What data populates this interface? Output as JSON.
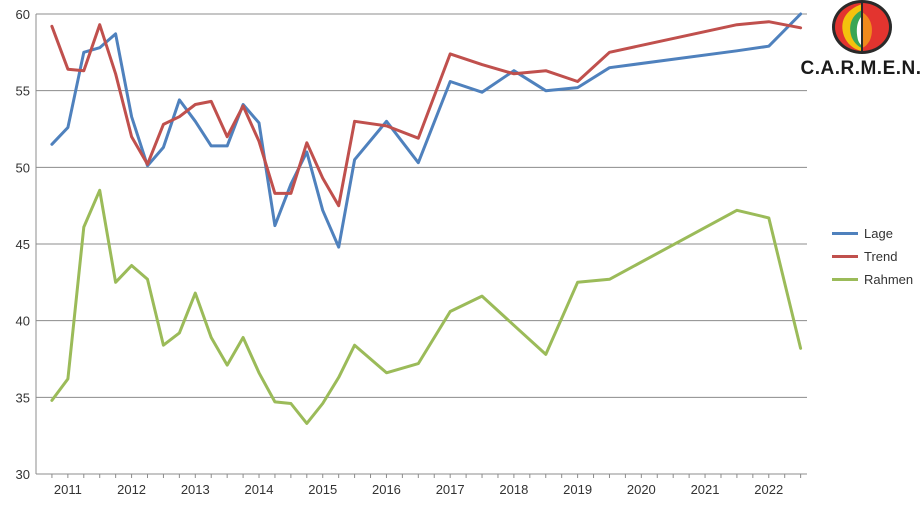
{
  "chart_data": {
    "type": "line",
    "title": "",
    "xlabel": "",
    "ylabel": "",
    "ylim": [
      30,
      60
    ],
    "yticks": [
      30,
      35,
      40,
      45,
      50,
      55,
      60
    ],
    "grid": "horizontal",
    "legend_position": "right",
    "year_labels": [
      "2011",
      "2012",
      "2013",
      "2014",
      "2015",
      "2016",
      "2017",
      "2018",
      "2019",
      "2020",
      "2021",
      "2022"
    ],
    "series": [
      {
        "name": "Lage",
        "color": "#4f81bd",
        "points": [
          [
            2010.75,
            51.5
          ],
          [
            2011.0,
            52.6
          ],
          [
            2011.25,
            57.5
          ],
          [
            2011.5,
            57.8
          ],
          [
            2011.75,
            58.7
          ],
          [
            2012.0,
            53.3
          ],
          [
            2012.25,
            50.1
          ],
          [
            2012.5,
            51.3
          ],
          [
            2012.75,
            54.4
          ],
          [
            2013.0,
            53.0
          ],
          [
            2013.25,
            51.4
          ],
          [
            2013.5,
            51.4
          ],
          [
            2013.75,
            54.1
          ],
          [
            2014.0,
            52.9
          ],
          [
            2014.25,
            46.2
          ],
          [
            2014.5,
            48.9
          ],
          [
            2014.75,
            51.0
          ],
          [
            2015.0,
            47.2
          ],
          [
            2015.25,
            44.8
          ],
          [
            2015.5,
            50.5
          ],
          [
            2016.0,
            53.0
          ],
          [
            2016.5,
            50.3
          ],
          [
            2017.0,
            55.6
          ],
          [
            2017.5,
            54.9
          ],
          [
            2018.0,
            56.3
          ],
          [
            2018.5,
            55.0
          ],
          [
            2019.0,
            55.2
          ],
          [
            2019.5,
            56.5
          ],
          [
            2021.5,
            57.6
          ],
          [
            2022.0,
            57.9
          ],
          [
            2022.5,
            60.0
          ]
        ]
      },
      {
        "name": "Trend",
        "color": "#c0504d",
        "points": [
          [
            2010.75,
            59.2
          ],
          [
            2011.0,
            56.4
          ],
          [
            2011.25,
            56.3
          ],
          [
            2011.5,
            59.3
          ],
          [
            2011.75,
            56.1
          ],
          [
            2012.0,
            52.0
          ],
          [
            2012.25,
            50.2
          ],
          [
            2012.5,
            52.8
          ],
          [
            2012.75,
            53.3
          ],
          [
            2013.0,
            54.1
          ],
          [
            2013.25,
            54.3
          ],
          [
            2013.5,
            52.0
          ],
          [
            2013.75,
            54.0
          ],
          [
            2014.0,
            51.7
          ],
          [
            2014.25,
            48.3
          ],
          [
            2014.5,
            48.3
          ],
          [
            2014.75,
            51.6
          ],
          [
            2015.0,
            49.3
          ],
          [
            2015.25,
            47.5
          ],
          [
            2015.5,
            53.0
          ],
          [
            2016.0,
            52.7
          ],
          [
            2016.5,
            51.9
          ],
          [
            2017.0,
            57.4
          ],
          [
            2017.5,
            56.7
          ],
          [
            2018.0,
            56.1
          ],
          [
            2018.5,
            56.3
          ],
          [
            2019.0,
            55.6
          ],
          [
            2019.5,
            57.5
          ],
          [
            2021.5,
            59.3
          ],
          [
            2022.0,
            59.5
          ],
          [
            2022.5,
            59.1
          ]
        ]
      },
      {
        "name": "Rahmen",
        "color": "#9bbb59",
        "points": [
          [
            2010.75,
            34.8
          ],
          [
            2011.0,
            36.2
          ],
          [
            2011.25,
            46.1
          ],
          [
            2011.5,
            48.5
          ],
          [
            2011.75,
            42.5
          ],
          [
            2012.0,
            43.6
          ],
          [
            2012.25,
            42.7
          ],
          [
            2012.5,
            38.4
          ],
          [
            2012.75,
            39.2
          ],
          [
            2013.0,
            41.8
          ],
          [
            2013.25,
            38.9
          ],
          [
            2013.5,
            37.1
          ],
          [
            2013.75,
            38.9
          ],
          [
            2014.0,
            36.6
          ],
          [
            2014.25,
            34.7
          ],
          [
            2014.5,
            34.6
          ],
          [
            2014.75,
            33.3
          ],
          [
            2015.0,
            34.6
          ],
          [
            2015.25,
            36.3
          ],
          [
            2015.5,
            38.4
          ],
          [
            2016.0,
            36.6
          ],
          [
            2016.5,
            37.2
          ],
          [
            2017.0,
            40.6
          ],
          [
            2017.5,
            41.6
          ],
          [
            2018.0,
            39.7
          ],
          [
            2018.5,
            37.8
          ],
          [
            2019.0,
            42.5
          ],
          [
            2019.5,
            42.7
          ],
          [
            2021.5,
            47.2
          ],
          [
            2022.0,
            46.7
          ],
          [
            2022.5,
            38.2
          ]
        ]
      }
    ]
  },
  "logo": {
    "text": "C.A.R.M.E.N."
  }
}
